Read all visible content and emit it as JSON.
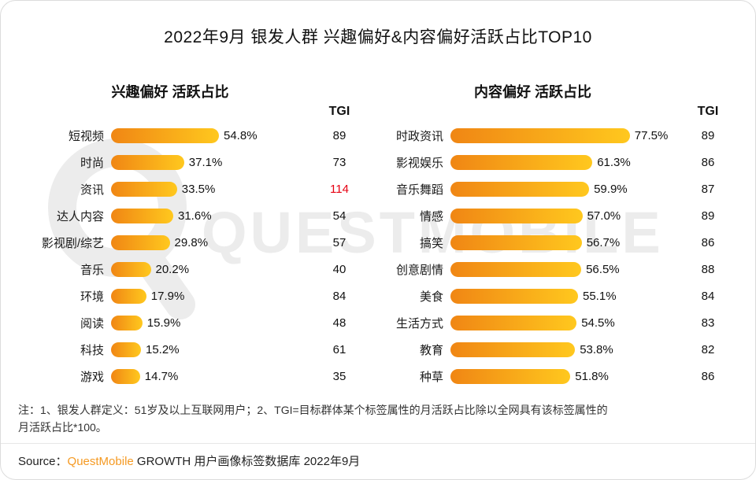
{
  "page": {
    "title": "2022年9月 银发人群 兴趣偏好&内容偏好活跃占比TOP10",
    "watermark": "QUESTMOBILE",
    "note": "注：1、银发人群定义：51岁及以上互联网用户；2、TGI=目标群体某个标签属性的月活跃占比除以全网具有该标签属性的\n月活跃占比*100。",
    "source_prefix": "Source：",
    "source_brand": "QuestMobile",
    "source_suffix": " GROWTH 用户画像标签数据库 2022年9月"
  },
  "colors": {
    "bar_start": "#F08614",
    "bar_end": "#FFC81E",
    "tgi_highlight": "#E60012",
    "brand_orange": "#F59A23",
    "watermark_gray": "#ececec"
  },
  "chart_data": [
    {
      "type": "bar",
      "title": "兴趣偏好 活跃占比",
      "tgi_header": "TGI",
      "orientation": "horizontal",
      "xlim": [
        0,
        100
      ],
      "categories": [
        "短视频",
        "时尚",
        "资讯",
        "达人内容",
        "影视剧/综艺",
        "音乐",
        "环境",
        "阅读",
        "科技",
        "游戏"
      ],
      "values": [
        54.8,
        37.1,
        33.5,
        31.6,
        29.8,
        20.2,
        17.9,
        15.9,
        15.2,
        14.7
      ],
      "value_suffix": "%",
      "tgi": [
        89,
        73,
        114,
        54,
        57,
        40,
        84,
        48,
        61,
        35
      ],
      "tgi_highlight_index": 2
    },
    {
      "type": "bar",
      "title": "内容偏好 活跃占比",
      "tgi_header": "TGI",
      "orientation": "horizontal",
      "xlim": [
        0,
        100
      ],
      "categories": [
        "时政资讯",
        "影视娱乐",
        "音乐舞蹈",
        "情感",
        "搞笑",
        "创意剧情",
        "美食",
        "生活方式",
        "教育",
        "种草"
      ],
      "values": [
        77.5,
        61.3,
        59.9,
        57.0,
        56.7,
        56.5,
        55.1,
        54.5,
        53.8,
        51.8
      ],
      "value_suffix": "%",
      "tgi": [
        89,
        86,
        87,
        89,
        86,
        88,
        84,
        83,
        82,
        86
      ],
      "tgi_highlight_index": -1
    }
  ]
}
